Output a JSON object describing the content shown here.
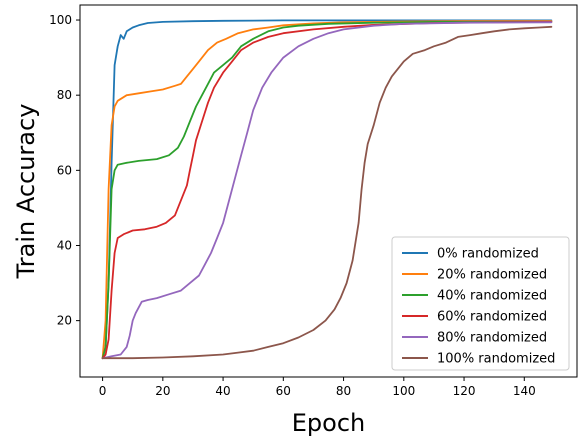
{
  "chart_data": {
    "type": "line",
    "xlabel": "Epoch",
    "ylabel": "Train Accuracy",
    "xlim": [
      -7.5,
      157.5
    ],
    "ylim": [
      5,
      104
    ],
    "xticks": [
      0,
      20,
      40,
      60,
      80,
      100,
      120,
      140
    ],
    "yticks": [
      20,
      40,
      60,
      80,
      100
    ],
    "grid": false,
    "legend_position": "lower-right",
    "series": [
      {
        "name": "0% randomized",
        "color": "#1f77b4",
        "points": [
          [
            0,
            10
          ],
          [
            1,
            13
          ],
          [
            2,
            30
          ],
          [
            3,
            62
          ],
          [
            4,
            88
          ],
          [
            5,
            93
          ],
          [
            6,
            96
          ],
          [
            7,
            95
          ],
          [
            8,
            97
          ],
          [
            10,
            98
          ],
          [
            12,
            98.6
          ],
          [
            15,
            99.2
          ],
          [
            20,
            99.5
          ],
          [
            30,
            99.7
          ],
          [
            40,
            99.8
          ],
          [
            60,
            99.9
          ],
          [
            100,
            99.9
          ],
          [
            149,
            99.9
          ]
        ]
      },
      {
        "name": "20% randomized",
        "color": "#ff7f0e",
        "points": [
          [
            0,
            10
          ],
          [
            1,
            20
          ],
          [
            2,
            55
          ],
          [
            3,
            72
          ],
          [
            4,
            77
          ],
          [
            5,
            78.5
          ],
          [
            8,
            80
          ],
          [
            12,
            80.5
          ],
          [
            16,
            81
          ],
          [
            20,
            81.5
          ],
          [
            24,
            82.5
          ],
          [
            26,
            83
          ],
          [
            28,
            85
          ],
          [
            30,
            87
          ],
          [
            32,
            89
          ],
          [
            35,
            92
          ],
          [
            38,
            94
          ],
          [
            41,
            95
          ],
          [
            45,
            96.5
          ],
          [
            50,
            97.5
          ],
          [
            55,
            98
          ],
          [
            60,
            98.6
          ],
          [
            70,
            99.1
          ],
          [
            80,
            99.4
          ],
          [
            100,
            99.6
          ],
          [
            120,
            99.7
          ],
          [
            149,
            99.7
          ]
        ]
      },
      {
        "name": "40% randomized",
        "color": "#2ca02c",
        "points": [
          [
            0,
            10
          ],
          [
            1,
            13
          ],
          [
            2,
            30
          ],
          [
            3,
            55
          ],
          [
            4,
            60
          ],
          [
            5,
            61.5
          ],
          [
            8,
            62
          ],
          [
            12,
            62.5
          ],
          [
            18,
            63
          ],
          [
            22,
            64
          ],
          [
            25,
            66
          ],
          [
            27,
            69
          ],
          [
            29,
            73
          ],
          [
            31,
            77
          ],
          [
            33,
            80
          ],
          [
            35,
            83
          ],
          [
            37,
            86
          ],
          [
            40,
            88
          ],
          [
            43,
            90
          ],
          [
            46,
            93
          ],
          [
            50,
            95
          ],
          [
            55,
            97
          ],
          [
            60,
            98
          ],
          [
            65,
            98.5
          ],
          [
            75,
            99
          ],
          [
            90,
            99.3
          ],
          [
            110,
            99.5
          ],
          [
            149,
            99.5
          ]
        ]
      },
      {
        "name": "60% randomized",
        "color": "#d62728",
        "points": [
          [
            0,
            10
          ],
          [
            1,
            11
          ],
          [
            2,
            15
          ],
          [
            3,
            28
          ],
          [
            4,
            38
          ],
          [
            5,
            42
          ],
          [
            7,
            43
          ],
          [
            10,
            44
          ],
          [
            14,
            44.3
          ],
          [
            18,
            45
          ],
          [
            21,
            46
          ],
          [
            24,
            48
          ],
          [
            26,
            52
          ],
          [
            28,
            56
          ],
          [
            29,
            60
          ],
          [
            30,
            64
          ],
          [
            31,
            68
          ],
          [
            33,
            73
          ],
          [
            35,
            78
          ],
          [
            37,
            82
          ],
          [
            40,
            86
          ],
          [
            43,
            89
          ],
          [
            46,
            92
          ],
          [
            50,
            94
          ],
          [
            55,
            95.5
          ],
          [
            60,
            96.5
          ],
          [
            70,
            97.5
          ],
          [
            80,
            98.2
          ],
          [
            90,
            98.7
          ],
          [
            110,
            99.2
          ],
          [
            130,
            99.4
          ],
          [
            149,
            99.5
          ]
        ]
      },
      {
        "name": "80% randomized",
        "color": "#9467bd",
        "points": [
          [
            0,
            10
          ],
          [
            3,
            10.5
          ],
          [
            6,
            11
          ],
          [
            8,
            13
          ],
          [
            9,
            16
          ],
          [
            10,
            20
          ],
          [
            11,
            22
          ],
          [
            13,
            25
          ],
          [
            15,
            25.5
          ],
          [
            18,
            26
          ],
          [
            22,
            27
          ],
          [
            26,
            28
          ],
          [
            29,
            30
          ],
          [
            32,
            32
          ],
          [
            34,
            35
          ],
          [
            36,
            38
          ],
          [
            38,
            42
          ],
          [
            40,
            46
          ],
          [
            42,
            52
          ],
          [
            44,
            58
          ],
          [
            46,
            64
          ],
          [
            48,
            70
          ],
          [
            50,
            76
          ],
          [
            53,
            82
          ],
          [
            56,
            86
          ],
          [
            60,
            90
          ],
          [
            65,
            93
          ],
          [
            70,
            95
          ],
          [
            75,
            96.5
          ],
          [
            80,
            97.5
          ],
          [
            90,
            98.5
          ],
          [
            100,
            99
          ],
          [
            120,
            99.3
          ],
          [
            149,
            99.4
          ]
        ]
      },
      {
        "name": "100% randomized",
        "color": "#8c564b",
        "points": [
          [
            0,
            10
          ],
          [
            5,
            10
          ],
          [
            10,
            10
          ],
          [
            20,
            10.2
          ],
          [
            30,
            10.5
          ],
          [
            40,
            11
          ],
          [
            45,
            11.5
          ],
          [
            50,
            12
          ],
          [
            55,
            13
          ],
          [
            60,
            14
          ],
          [
            65,
            15.5
          ],
          [
            70,
            17.5
          ],
          [
            74,
            20
          ],
          [
            77,
            23
          ],
          [
            79,
            26
          ],
          [
            81,
            30
          ],
          [
            83,
            36
          ],
          [
            85,
            46
          ],
          [
            86,
            55
          ],
          [
            87,
            62
          ],
          [
            88,
            67
          ],
          [
            90,
            72
          ],
          [
            92,
            78
          ],
          [
            94,
            82
          ],
          [
            96,
            85
          ],
          [
            98,
            87
          ],
          [
            100,
            89
          ],
          [
            103,
            91
          ],
          [
            107,
            92
          ],
          [
            110,
            93
          ],
          [
            114,
            94
          ],
          [
            118,
            95.5
          ],
          [
            122,
            96
          ],
          [
            126,
            96.5
          ],
          [
            130,
            97
          ],
          [
            135,
            97.5
          ],
          [
            140,
            97.8
          ],
          [
            145,
            98
          ],
          [
            149,
            98.2
          ]
        ]
      }
    ]
  }
}
